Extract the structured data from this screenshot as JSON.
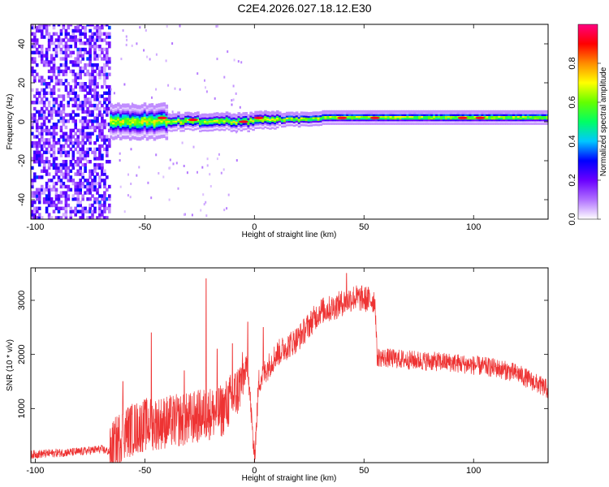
{
  "title": "C2E4.2026.027.18.12.E30",
  "chart_data": [
    {
      "type": "heatmap",
      "xlabel": "Height of straight line (km)",
      "ylabel": "Frequency (Hz)",
      "xlim": [
        -102,
        134
      ],
      "ylim": [
        -50,
        50
      ],
      "x_ticks": [
        -100,
        -50,
        0,
        50,
        100
      ],
      "y_ticks": [
        -40,
        -20,
        0,
        20,
        40
      ],
      "colorbar": {
        "label": "Normalized spectral amplitude",
        "range": [
          0,
          1
        ],
        "ticks": [
          "0.0",
          "0.2",
          "0.4",
          "0.6",
          "0.8"
        ],
        "colormap": [
          "#ffffff",
          "#b070ff",
          "#6a00ff",
          "#0000ff",
          "#00c8ff",
          "#00ff64",
          "#64ff00",
          "#ffff00",
          "#ff8c00",
          "#ff0000",
          "#ff0080"
        ]
      },
      "noise_region_x": [
        -102,
        -66
      ],
      "signal_band": {
        "x_start": -66,
        "center_freq_hz": [
          0,
          1,
          2
        ],
        "halfwidth_hz": [
          4,
          2,
          1.5
        ]
      },
      "strong_spots": [
        {
          "x": -42,
          "f": 2
        },
        {
          "x": -28,
          "f": 1
        },
        {
          "x": -5,
          "f": 0
        },
        {
          "x": 2,
          "f": 2
        },
        {
          "x": 40,
          "f": 2
        },
        {
          "x": 55,
          "f": 2
        },
        {
          "x": 95,
          "f": 2
        },
        {
          "x": 103,
          "f": 2
        }
      ],
      "grid": false
    },
    {
      "type": "line",
      "xlabel": "Height of straight line (km)",
      "ylabel": "SNR (10 * v/v)",
      "xlim": [
        -102,
        134
      ],
      "ylim": [
        0,
        3600
      ],
      "x_ticks": [
        -100,
        -50,
        0,
        50,
        100
      ],
      "y_ticks": [
        1000,
        2000,
        3000
      ],
      "line_color": "#ee3333",
      "series": [
        {
          "x": [
            -102,
            -90,
            -80,
            -70,
            -66,
            -60,
            -50,
            -40,
            -30,
            -22,
            -15,
            -8,
            -3,
            0,
            2,
            5,
            10,
            20,
            30,
            35,
            45,
            55,
            56,
            70,
            90,
            110,
            120,
            134
          ],
          "values": [
            150,
            180,
            200,
            250,
            200,
            550,
            700,
            750,
            800,
            900,
            950,
            1300,
            1800,
            50,
            1500,
            1700,
            2000,
            2300,
            2800,
            2850,
            3050,
            3000,
            1950,
            1900,
            1850,
            1750,
            1650,
            1350
          ]
        }
      ],
      "spikes": [
        {
          "x": -60,
          "y": 1500
        },
        {
          "x": -47,
          "y": 2400
        },
        {
          "x": -32,
          "y": 1700
        },
        {
          "x": -22,
          "y": 3400
        },
        {
          "x": -17,
          "y": 2100
        },
        {
          "x": -10,
          "y": 2200
        },
        {
          "x": -3,
          "y": 2600
        },
        {
          "x": 4,
          "y": 2500
        },
        {
          "x": 42,
          "y": 3500
        }
      ],
      "grid": false
    }
  ]
}
